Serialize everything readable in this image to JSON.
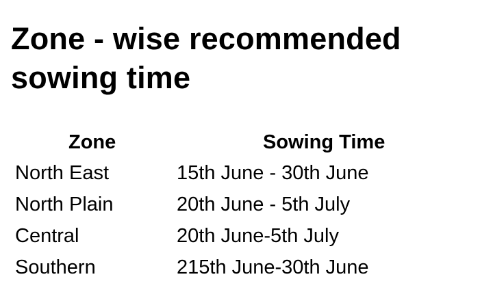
{
  "title": "Zone - wise recommended sowing time",
  "table": {
    "headers": [
      "Zone",
      "Sowing Time"
    ],
    "rows": [
      [
        "North East",
        "15th June - 30th June"
      ],
      [
        "North Plain",
        "20th June - 5th July"
      ],
      [
        "Central",
        "20th June-5th July"
      ],
      [
        "Southern",
        "215th June-30th June"
      ]
    ]
  }
}
